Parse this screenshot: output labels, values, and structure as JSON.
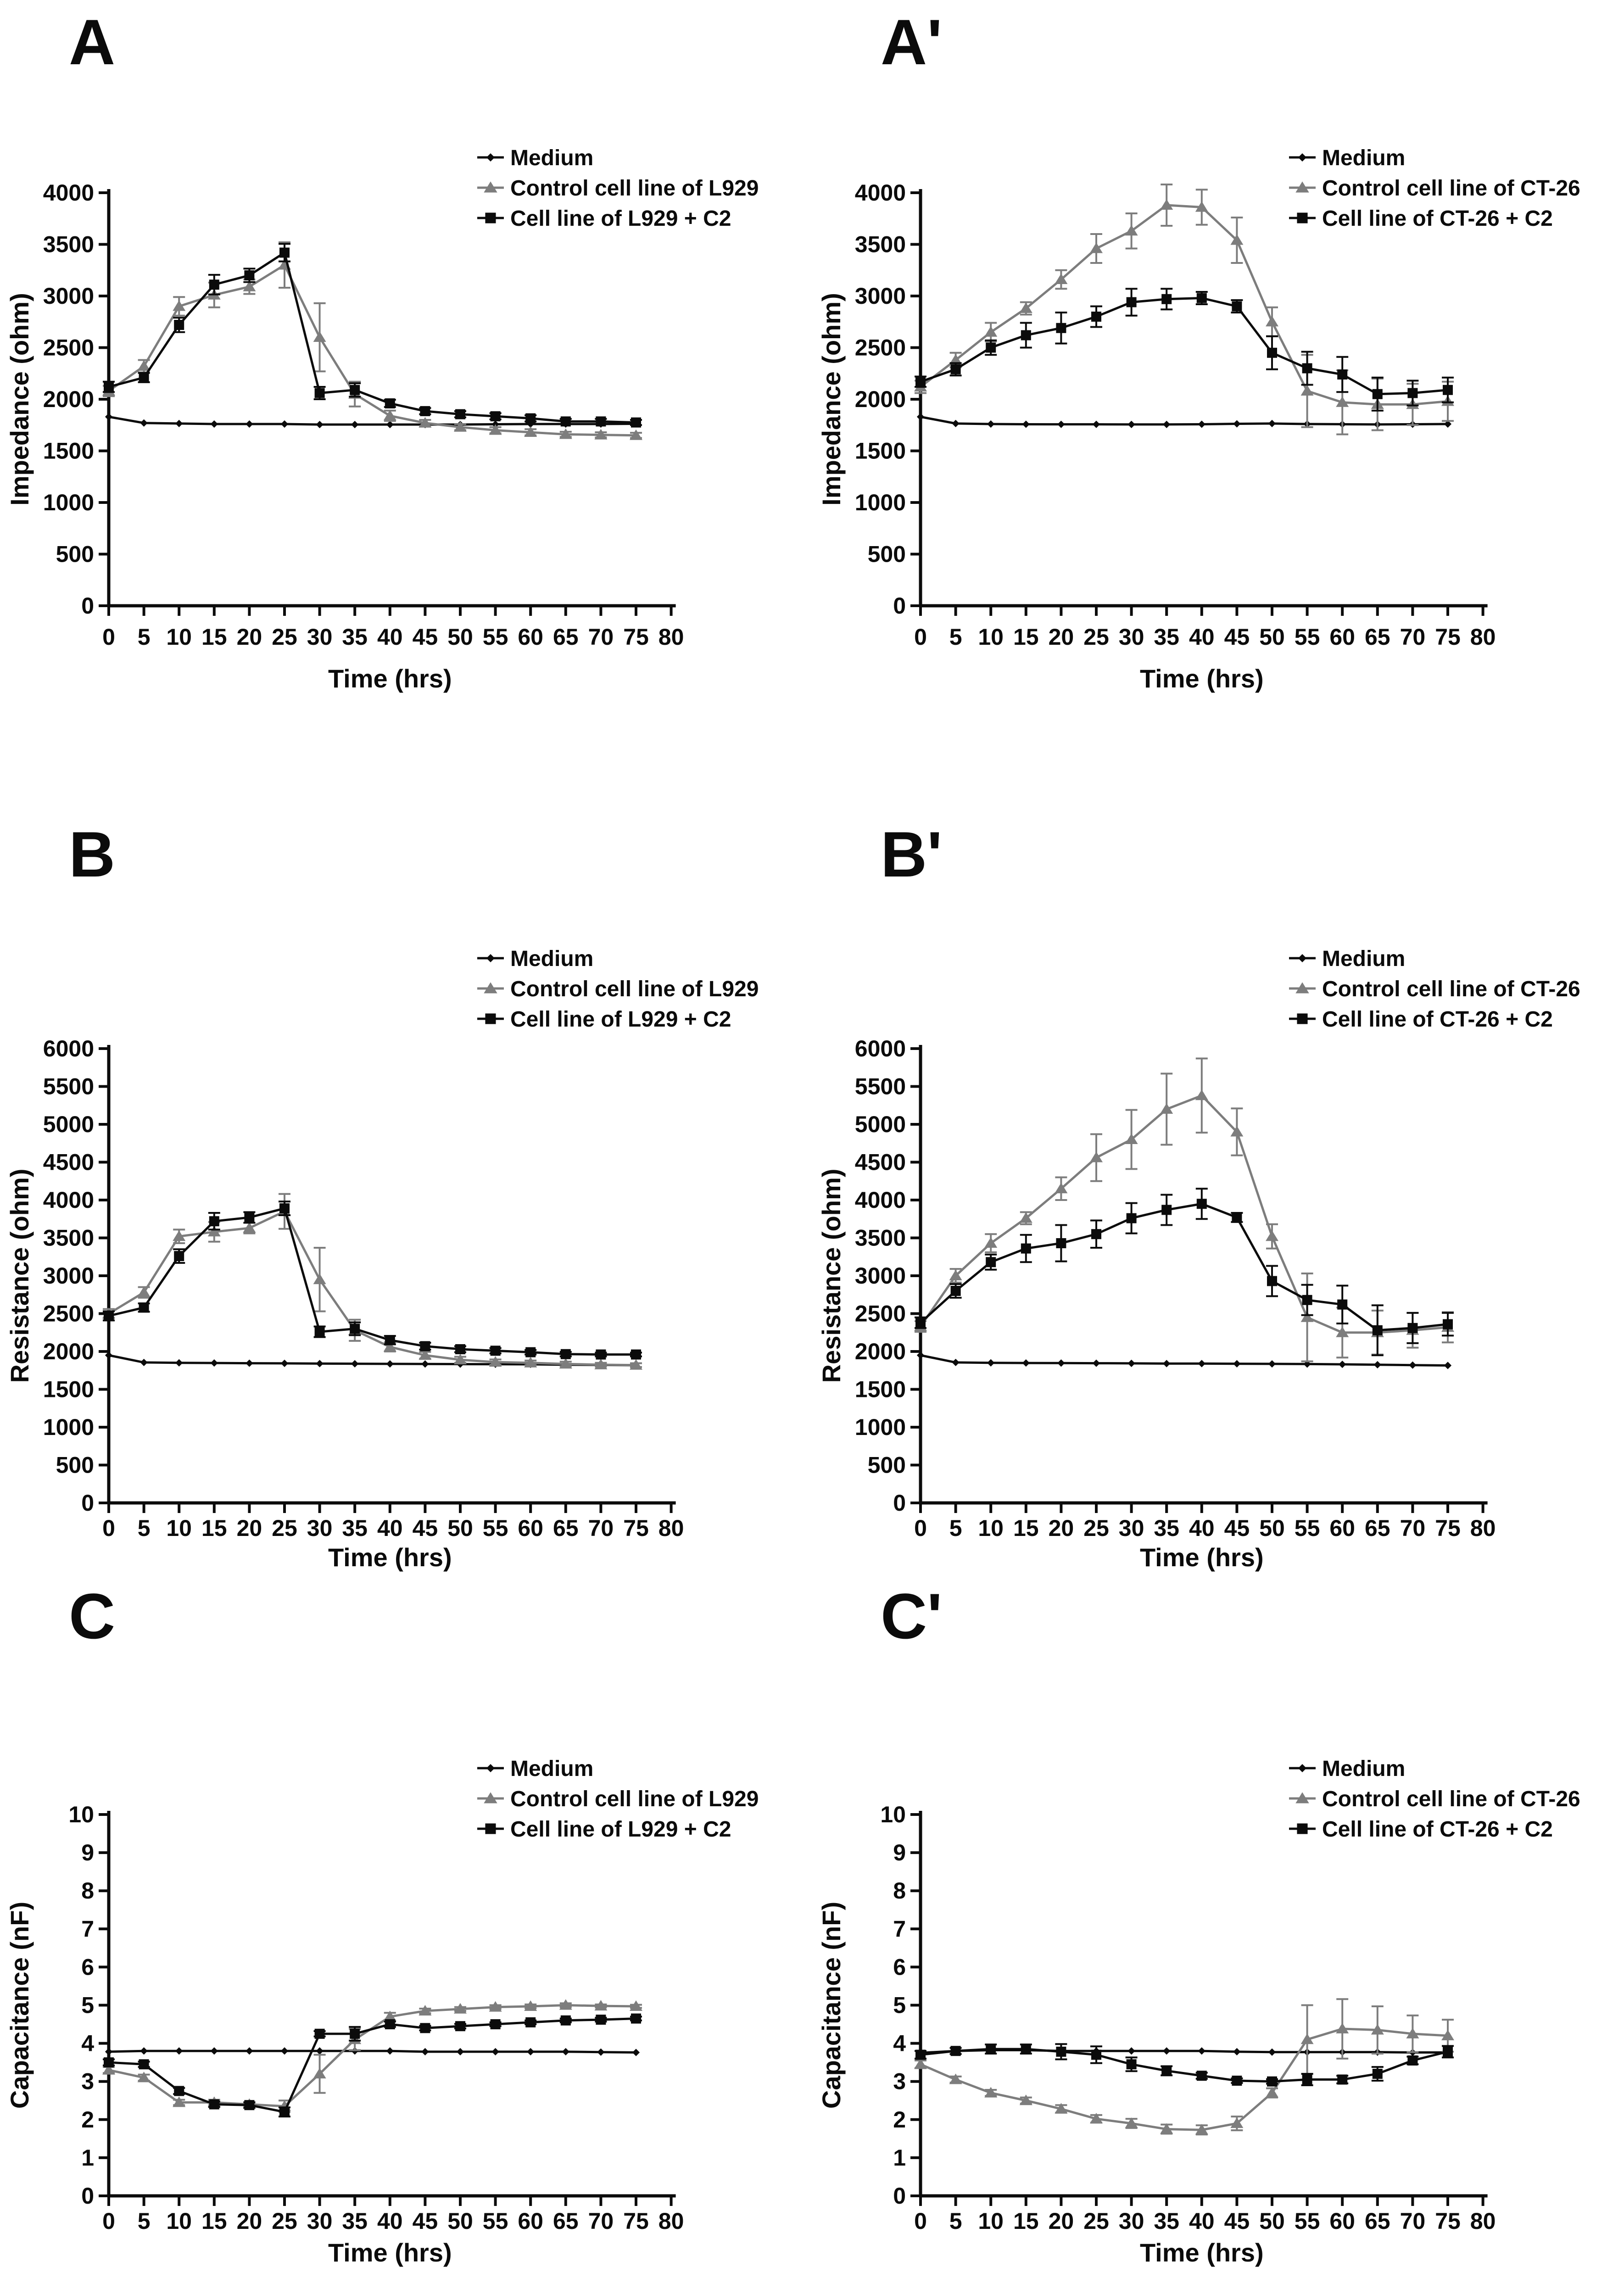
{
  "figure": {
    "background": "#ffffff"
  },
  "colors": {
    "black": "#0b0b0b",
    "gray": "#7d7d7d"
  },
  "x_axis": {
    "label": "Time (hrs)",
    "min": 0,
    "max": 80,
    "tick_step": 5
  },
  "chart_data": [
    {
      "type": "line",
      "panel_label": "A",
      "ylabel": "Impedance (ohm)",
      "xlabel": "Time (hrs)",
      "ylim": [
        0,
        4000
      ],
      "ytick_step": 500,
      "xlim": [
        0,
        80
      ],
      "xtick_step": 5,
      "grid": false,
      "legend_position": "top-right",
      "x": [
        0,
        5,
        10,
        15,
        20,
        25,
        30,
        35,
        40,
        45,
        50,
        55,
        60,
        65,
        70,
        75
      ],
      "series": [
        {
          "name": "Medium",
          "marker": "diamond",
          "color": "black",
          "values": [
            1830,
            1770,
            1765,
            1760,
            1760,
            1760,
            1755,
            1755,
            1755,
            1755,
            1755,
            1758,
            1760,
            1760,
            1760,
            1762
          ],
          "err": [
            0,
            0,
            0,
            0,
            0,
            0,
            0,
            0,
            0,
            0,
            0,
            0,
            0,
            0,
            0,
            0
          ]
        },
        {
          "name": "Control cell line of L929",
          "marker": "triangle",
          "color": "gray",
          "values": [
            2080,
            2320,
            2900,
            3010,
            3090,
            3300,
            2600,
            2050,
            1840,
            1770,
            1730,
            1700,
            1680,
            1660,
            1655,
            1650
          ],
          "err": [
            50,
            60,
            90,
            120,
            70,
            220,
            330,
            120,
            50,
            30,
            30,
            30,
            30,
            25,
            25,
            25
          ]
        },
        {
          "name": "Cell line of L929 + C2",
          "marker": "square",
          "color": "black",
          "values": [
            2120,
            2210,
            2720,
            3110,
            3200,
            3420,
            2060,
            2090,
            1960,
            1885,
            1855,
            1835,
            1815,
            1785,
            1785,
            1775
          ],
          "err": [
            50,
            45,
            70,
            95,
            65,
            85,
            60,
            65,
            35,
            30,
            30,
            30,
            30,
            25,
            25,
            25
          ]
        }
      ]
    },
    {
      "type": "line",
      "panel_label": "A'",
      "ylabel": "Impedance (ohm)",
      "xlabel": "Time (hrs)",
      "ylim": [
        0,
        4000
      ],
      "ytick_step": 500,
      "xlim": [
        0,
        80
      ],
      "xtick_step": 5,
      "grid": false,
      "legend_position": "top-right",
      "x": [
        0,
        5,
        10,
        15,
        20,
        25,
        30,
        35,
        40,
        45,
        50,
        55,
        60,
        65,
        70,
        75
      ],
      "series": [
        {
          "name": "Medium",
          "marker": "diamond",
          "color": "black",
          "values": [
            1830,
            1765,
            1760,
            1758,
            1757,
            1757,
            1756,
            1756,
            1758,
            1762,
            1765,
            1760,
            1758,
            1756,
            1758,
            1760
          ],
          "err": [
            0,
            0,
            0,
            0,
            0,
            0,
            0,
            0,
            0,
            0,
            0,
            0,
            0,
            0,
            0,
            0
          ]
        },
        {
          "name": "Control cell line of CT-26",
          "marker": "triangle",
          "color": "gray",
          "values": [
            2120,
            2380,
            2650,
            2880,
            3160,
            3460,
            3630,
            3880,
            3860,
            3540,
            2750,
            2080,
            1970,
            1950,
            1950,
            1980
          ],
          "err": [
            60,
            70,
            90,
            60,
            90,
            140,
            170,
            200,
            170,
            220,
            140,
            350,
            310,
            250,
            200,
            190
          ]
        },
        {
          "name": "Cell line of CT-26 + C2",
          "marker": "square",
          "color": "black",
          "values": [
            2170,
            2290,
            2500,
            2620,
            2690,
            2800,
            2940,
            2970,
            2980,
            2900,
            2450,
            2300,
            2240,
            2050,
            2060,
            2090
          ],
          "err": [
            50,
            60,
            70,
            120,
            150,
            100,
            130,
            100,
            60,
            60,
            160,
            160,
            170,
            160,
            120,
            120
          ]
        }
      ]
    },
    {
      "type": "line",
      "panel_label": "B",
      "ylabel": "Resistance (ohm)",
      "xlabel": "Time (hrs)",
      "ylim": [
        0,
        6000
      ],
      "ytick_step": 500,
      "xlim": [
        0,
        80
      ],
      "xtick_step": 5,
      "grid": false,
      "legend_position": "top-right",
      "x": [
        0,
        5,
        10,
        15,
        20,
        25,
        30,
        35,
        40,
        45,
        50,
        55,
        60,
        65,
        70,
        75
      ],
      "series": [
        {
          "name": "Medium",
          "marker": "diamond",
          "color": "black",
          "values": [
            1950,
            1855,
            1850,
            1848,
            1845,
            1843,
            1840,
            1838,
            1836,
            1835,
            1833,
            1832,
            1830,
            1825,
            1822,
            1818
          ],
          "err": [
            0,
            0,
            0,
            0,
            0,
            0,
            0,
            0,
            0,
            0,
            0,
            0,
            0,
            0,
            0,
            0
          ]
        },
        {
          "name": "Control cell line of L929",
          "marker": "triangle",
          "color": "gray",
          "values": [
            2500,
            2780,
            3520,
            3580,
            3630,
            3850,
            2950,
            2280,
            2060,
            1950,
            1890,
            1860,
            1850,
            1835,
            1825,
            1820
          ],
          "err": [
            60,
            70,
            90,
            130,
            70,
            230,
            420,
            140,
            60,
            45,
            40,
            35,
            30,
            30,
            25,
            25
          ]
        },
        {
          "name": "Cell line of L929 + C2",
          "marker": "square",
          "color": "black",
          "values": [
            2470,
            2580,
            3260,
            3720,
            3770,
            3890,
            2260,
            2300,
            2150,
            2070,
            2030,
            2010,
            1990,
            1965,
            1960,
            1960
          ],
          "err": [
            60,
            55,
            90,
            110,
            70,
            90,
            70,
            85,
            55,
            45,
            40,
            35,
            30,
            30,
            25,
            25
          ]
        }
      ]
    },
    {
      "type": "line",
      "panel_label": "B'",
      "ylabel": "Resistance (ohm)",
      "xlabel": "Time (hrs)",
      "ylim": [
        0,
        6000
      ],
      "ytick_step": 500,
      "xlim": [
        0,
        80
      ],
      "xtick_step": 5,
      "grid": false,
      "legend_position": "top-right",
      "x": [
        0,
        5,
        10,
        15,
        20,
        25,
        30,
        35,
        40,
        45,
        50,
        55,
        60,
        65,
        70,
        75
      ],
      "series": [
        {
          "name": "Medium",
          "marker": "diamond",
          "color": "black",
          "values": [
            1950,
            1855,
            1850,
            1848,
            1847,
            1845,
            1843,
            1840,
            1840,
            1838,
            1836,
            1834,
            1830,
            1825,
            1820,
            1815
          ],
          "err": [
            0,
            0,
            0,
            0,
            0,
            0,
            0,
            0,
            0,
            0,
            0,
            0,
            0,
            0,
            0,
            0
          ]
        },
        {
          "name": "Control cell line of CT-26",
          "marker": "triangle",
          "color": "gray",
          "values": [
            2330,
            3000,
            3430,
            3760,
            4150,
            4560,
            4800,
            5200,
            5380,
            4900,
            3520,
            2450,
            2250,
            2250,
            2280,
            2320
          ],
          "err": [
            70,
            90,
            120,
            80,
            150,
            310,
            390,
            470,
            490,
            310,
            160,
            580,
            330,
            290,
            230,
            200
          ]
        },
        {
          "name": "Cell line of CT-26 + C2",
          "marker": "square",
          "color": "black",
          "values": [
            2380,
            2800,
            3180,
            3360,
            3430,
            3550,
            3760,
            3870,
            3950,
            3770,
            2930,
            2680,
            2620,
            2280,
            2310,
            2360
          ],
          "err": [
            70,
            90,
            100,
            180,
            240,
            180,
            200,
            200,
            200,
            60,
            200,
            200,
            250,
            330,
            200,
            150
          ]
        }
      ]
    },
    {
      "type": "line",
      "panel_label": "C",
      "ylabel": "Capacitance (nF)",
      "xlabel": "Time (hrs)",
      "ylim": [
        0,
        10
      ],
      "ytick_step": 1,
      "xlim": [
        0,
        80
      ],
      "xtick_step": 5,
      "grid": false,
      "legend_position": "top-right",
      "x": [
        0,
        5,
        10,
        15,
        20,
        25,
        30,
        35,
        40,
        45,
        50,
        55,
        60,
        65,
        70,
        75
      ],
      "series": [
        {
          "name": "Medium",
          "marker": "diamond",
          "color": "black",
          "values": [
            3.78,
            3.8,
            3.8,
            3.8,
            3.8,
            3.8,
            3.8,
            3.8,
            3.8,
            3.78,
            3.78,
            3.78,
            3.78,
            3.78,
            3.77,
            3.76
          ],
          "err": [
            0,
            0,
            0,
            0,
            0,
            0,
            0,
            0,
            0,
            0,
            0,
            0,
            0,
            0,
            0,
            0
          ]
        },
        {
          "name": "Control cell line of L929",
          "marker": "triangle",
          "color": "gray",
          "values": [
            3.3,
            3.1,
            2.45,
            2.45,
            2.4,
            2.35,
            3.2,
            4.1,
            4.7,
            4.85,
            4.9,
            4.95,
            4.97,
            5.0,
            4.98,
            4.97
          ],
          "err": [
            0.08,
            0.08,
            0.07,
            0.07,
            0.06,
            0.15,
            0.5,
            0.28,
            0.1,
            0.06,
            0.05,
            0.05,
            0.05,
            0.05,
            0.04,
            0.04
          ]
        },
        {
          "name": "Cell line of L929 + C2",
          "marker": "square",
          "color": "black",
          "values": [
            3.5,
            3.45,
            2.75,
            2.4,
            2.38,
            2.2,
            4.25,
            4.25,
            4.5,
            4.4,
            4.45,
            4.5,
            4.55,
            4.6,
            4.62,
            4.65
          ],
          "err": [
            0.08,
            0.07,
            0.08,
            0.07,
            0.07,
            0.12,
            0.07,
            0.18,
            0.07,
            0.06,
            0.06,
            0.05,
            0.05,
            0.05,
            0.05,
            0.05
          ]
        }
      ]
    },
    {
      "type": "line",
      "panel_label": "C'",
      "ylabel": "Capacitance (nF)",
      "xlabel": "Time (hrs)",
      "ylim": [
        0,
        10
      ],
      "ytick_step": 1,
      "xlim": [
        0,
        80
      ],
      "xtick_step": 5,
      "grid": false,
      "legend_position": "top-right",
      "x": [
        0,
        5,
        10,
        15,
        20,
        25,
        30,
        35,
        40,
        45,
        50,
        55,
        60,
        65,
        70,
        75
      ],
      "series": [
        {
          "name": "Medium",
          "marker": "diamond",
          "color": "black",
          "values": [
            3.75,
            3.8,
            3.82,
            3.82,
            3.8,
            3.8,
            3.8,
            3.8,
            3.8,
            3.78,
            3.77,
            3.77,
            3.77,
            3.77,
            3.76,
            3.76
          ],
          "err": [
            0,
            0,
            0,
            0,
            0,
            0,
            0,
            0,
            0,
            0,
            0,
            0,
            0,
            0,
            0,
            0
          ]
        },
        {
          "name": "Control cell line of CT-26",
          "marker": "triangle",
          "color": "gray",
          "values": [
            3.45,
            3.05,
            2.7,
            2.5,
            2.28,
            2.02,
            1.9,
            1.75,
            1.73,
            1.9,
            2.7,
            4.1,
            4.38,
            4.35,
            4.25,
            4.2
          ],
          "err": [
            0.1,
            0.08,
            0.08,
            0.08,
            0.1,
            0.1,
            0.12,
            0.12,
            0.12,
            0.18,
            0.12,
            0.9,
            0.78,
            0.62,
            0.48,
            0.42
          ]
        },
        {
          "name": "Cell line of CT-26 + C2",
          "marker": "square",
          "color": "black",
          "values": [
            3.7,
            3.8,
            3.85,
            3.85,
            3.78,
            3.7,
            3.45,
            3.28,
            3.15,
            3.02,
            3.0,
            3.05,
            3.05,
            3.2,
            3.55,
            3.78
          ],
          "err": [
            0.1,
            0.08,
            0.12,
            0.12,
            0.2,
            0.22,
            0.18,
            0.12,
            0.08,
            0.06,
            0.06,
            0.15,
            0.1,
            0.18,
            0.1,
            0.15
          ]
        }
      ]
    }
  ]
}
